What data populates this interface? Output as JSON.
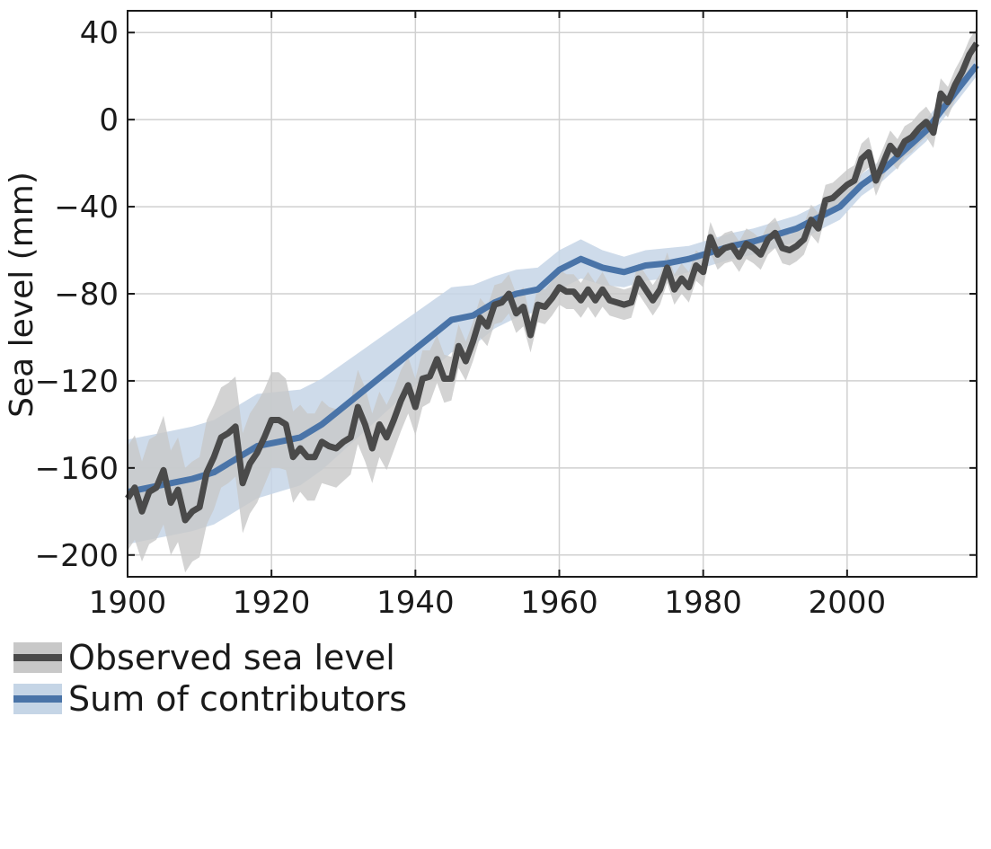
{
  "chart_data": {
    "type": "line",
    "title": "",
    "xlabel": "",
    "ylabel": "Sea level (mm)",
    "xlim": [
      1900,
      2018
    ],
    "ylim": [
      -210,
      50
    ],
    "xticks": [
      1900,
      1920,
      1940,
      1960,
      1980,
      2000
    ],
    "xtick_labels": [
      "1900",
      "1920",
      "1940",
      "1960",
      "1980",
      "2000"
    ],
    "yticks": [
      40,
      0,
      -40,
      -80,
      -120,
      -160,
      -200
    ],
    "ytick_labels": [
      "40",
      "0",
      "−40",
      "−80",
      "−120",
      "−160",
      "−200"
    ],
    "grid": true,
    "legend_position": "bottom-left-below-plot",
    "series": [
      {
        "name": "Observed sea level",
        "color": "#4a4a4a",
        "band_color": "#c8c8c8",
        "x": [
          1900,
          1901,
          1902,
          1903,
          1904,
          1905,
          1906,
          1907,
          1908,
          1909,
          1910,
          1911,
          1912,
          1913,
          1914,
          1915,
          1916,
          1917,
          1918,
          1919,
          1920,
          1921,
          1922,
          1923,
          1924,
          1925,
          1926,
          1927,
          1928,
          1929,
          1930,
          1931,
          1932,
          1933,
          1934,
          1935,
          1936,
          1937,
          1938,
          1939,
          1940,
          1941,
          1942,
          1943,
          1944,
          1945,
          1946,
          1947,
          1948,
          1949,
          1950,
          1951,
          1952,
          1953,
          1954,
          1955,
          1956,
          1957,
          1958,
          1959,
          1960,
          1961,
          1962,
          1963,
          1964,
          1965,
          1966,
          1967,
          1968,
          1969,
          1970,
          1971,
          1972,
          1973,
          1974,
          1975,
          1976,
          1977,
          1978,
          1979,
          1980,
          1981,
          1982,
          1983,
          1984,
          1985,
          1986,
          1987,
          1988,
          1989,
          1990,
          1991,
          1992,
          1993,
          1994,
          1995,
          1996,
          1997,
          1998,
          1999,
          2000,
          2001,
          2002,
          2003,
          2004,
          2005,
          2006,
          2007,
          2008,
          2009,
          2010,
          2011,
          2012,
          2013,
          2014,
          2015,
          2016,
          2017,
          2018
        ],
        "values": [
          -174,
          -169,
          -180,
          -171,
          -169,
          -161,
          -176,
          -170,
          -184,
          -180,
          -178,
          -162,
          -155,
          -146,
          -144,
          -141,
          -167,
          -158,
          -153,
          -146,
          -138,
          -138,
          -140,
          -155,
          -151,
          -155,
          -155,
          -148,
          -150,
          -151,
          -148,
          -146,
          -132,
          -140,
          -151,
          -140,
          -146,
          -138,
          -129,
          -122,
          -132,
          -119,
          -118,
          -110,
          -119,
          -119,
          -104,
          -111,
          -102,
          -91,
          -95,
          -85,
          -84,
          -80,
          -89,
          -86,
          -99,
          -85,
          -86,
          -82,
          -77,
          -79,
          -79,
          -83,
          -78,
          -83,
          -78,
          -83,
          -84,
          -85,
          -84,
          -73,
          -78,
          -83,
          -78,
          -68,
          -78,
          -73,
          -77,
          -67,
          -70,
          -54,
          -62,
          -59,
          -58,
          -63,
          -57,
          -59,
          -62,
          -55,
          -52,
          -59,
          -60,
          -58,
          -55,
          -46,
          -50,
          -37,
          -36,
          -33,
          -30,
          -28,
          -18,
          -15,
          -28,
          -20,
          -12,
          -16,
          -10,
          -8,
          -4,
          -1,
          -6,
          12,
          8,
          16,
          22,
          30,
          35
        ],
        "lower": [
          -198,
          -193,
          -203,
          -195,
          -193,
          -186,
          -200,
          -194,
          -208,
          -203,
          -201,
          -186,
          -179,
          -169,
          -167,
          -164,
          -190,
          -181,
          -176,
          -168,
          -160,
          -160,
          -161,
          -176,
          -171,
          -175,
          -175,
          -167,
          -168,
          -169,
          -166,
          -163,
          -149,
          -157,
          -167,
          -155,
          -161,
          -152,
          -143,
          -135,
          -145,
          -132,
          -130,
          -121,
          -130,
          -129,
          -114,
          -120,
          -111,
          -100,
          -104,
          -94,
          -93,
          -89,
          -98,
          -95,
          -107,
          -93,
          -94,
          -90,
          -85,
          -87,
          -87,
          -91,
          -86,
          -91,
          -86,
          -90,
          -91,
          -92,
          -91,
          -80,
          -85,
          -90,
          -85,
          -75,
          -85,
          -80,
          -84,
          -74,
          -77,
          -61,
          -69,
          -66,
          -65,
          -70,
          -64,
          -66,
          -69,
          -62,
          -59,
          -66,
          -67,
          -65,
          -62,
          -53,
          -57,
          -44,
          -43,
          -40,
          -37,
          -35,
          -25,
          -22,
          -35,
          -27,
          -19,
          -23,
          -17,
          -15,
          -11,
          -8,
          -13,
          5,
          1,
          9,
          15,
          23,
          28
        ],
        "upper": [
          -150,
          -145,
          -157,
          -147,
          -145,
          -136,
          -152,
          -146,
          -160,
          -157,
          -155,
          -138,
          -131,
          -123,
          -121,
          -118,
          -144,
          -135,
          -130,
          -124,
          -116,
          -116,
          -119,
          -134,
          -131,
          -135,
          -135,
          -129,
          -132,
          -133,
          -130,
          -129,
          -115,
          -123,
          -135,
          -125,
          -131,
          -124,
          -115,
          -109,
          -119,
          -106,
          -106,
          -99,
          -108,
          -109,
          -94,
          -102,
          -93,
          -82,
          -86,
          -76,
          -75,
          -71,
          -80,
          -77,
          -91,
          -77,
          -78,
          -74,
          -69,
          -71,
          -71,
          -75,
          -70,
          -75,
          -70,
          -76,
          -77,
          -78,
          -77,
          -66,
          -71,
          -76,
          -71,
          -61,
          -71,
          -66,
          -70,
          -60,
          -63,
          -47,
          -55,
          -52,
          -51,
          -56,
          -50,
          -52,
          -55,
          -48,
          -45,
          -52,
          -53,
          -51,
          -48,
          -39,
          -43,
          -30,
          -29,
          -26,
          -23,
          -21,
          -11,
          -8,
          -21,
          -13,
          -5,
          -9,
          -3,
          -1,
          3,
          6,
          1,
          19,
          15,
          23,
          29,
          37,
          42
        ]
      },
      {
        "name": "Sum of contributors",
        "color": "#4a74a8",
        "band_color": "#c5d5e6",
        "x": [
          1900,
          1903,
          1906,
          1909,
          1912,
          1915,
          1918,
          1921,
          1924,
          1927,
          1930,
          1933,
          1936,
          1939,
          1942,
          1945,
          1948,
          1951,
          1954,
          1957,
          1960,
          1963,
          1966,
          1969,
          1972,
          1975,
          1978,
          1981,
          1984,
          1987,
          1990,
          1993,
          1996,
          1999,
          2002,
          2005,
          2008,
          2011,
          2014,
          2018
        ],
        "values": [
          -171,
          -169,
          -167,
          -165,
          -162,
          -156,
          -150,
          -148,
          -146,
          -140,
          -132,
          -124,
          -116,
          -108,
          -100,
          -92,
          -90,
          -84,
          -80,
          -78,
          -69,
          -64,
          -68,
          -70,
          -67,
          -66,
          -64,
          -61,
          -58,
          -56,
          -53,
          -50,
          -45,
          -40,
          -30,
          -23,
          -14,
          -5,
          8,
          25
        ],
        "lower": [
          -195,
          -193,
          -191,
          -189,
          -186,
          -180,
          -174,
          -171,
          -168,
          -161,
          -152,
          -143,
          -134,
          -125,
          -116,
          -107,
          -104,
          -96,
          -91,
          -88,
          -78,
          -73,
          -76,
          -77,
          -74,
          -73,
          -70,
          -67,
          -64,
          -62,
          -59,
          -56,
          -51,
          -46,
          -35,
          -28,
          -19,
          -10,
          3,
          20
        ],
        "upper": [
          -147,
          -145,
          -143,
          -141,
          -138,
          -132,
          -126,
          -125,
          -124,
          -119,
          -112,
          -105,
          -98,
          -91,
          -84,
          -77,
          -76,
          -72,
          -69,
          -68,
          -60,
          -55,
          -60,
          -63,
          -60,
          -59,
          -58,
          -55,
          -52,
          -50,
          -47,
          -44,
          -39,
          -34,
          -25,
          -18,
          -9,
          0,
          13,
          30
        ]
      }
    ]
  }
}
